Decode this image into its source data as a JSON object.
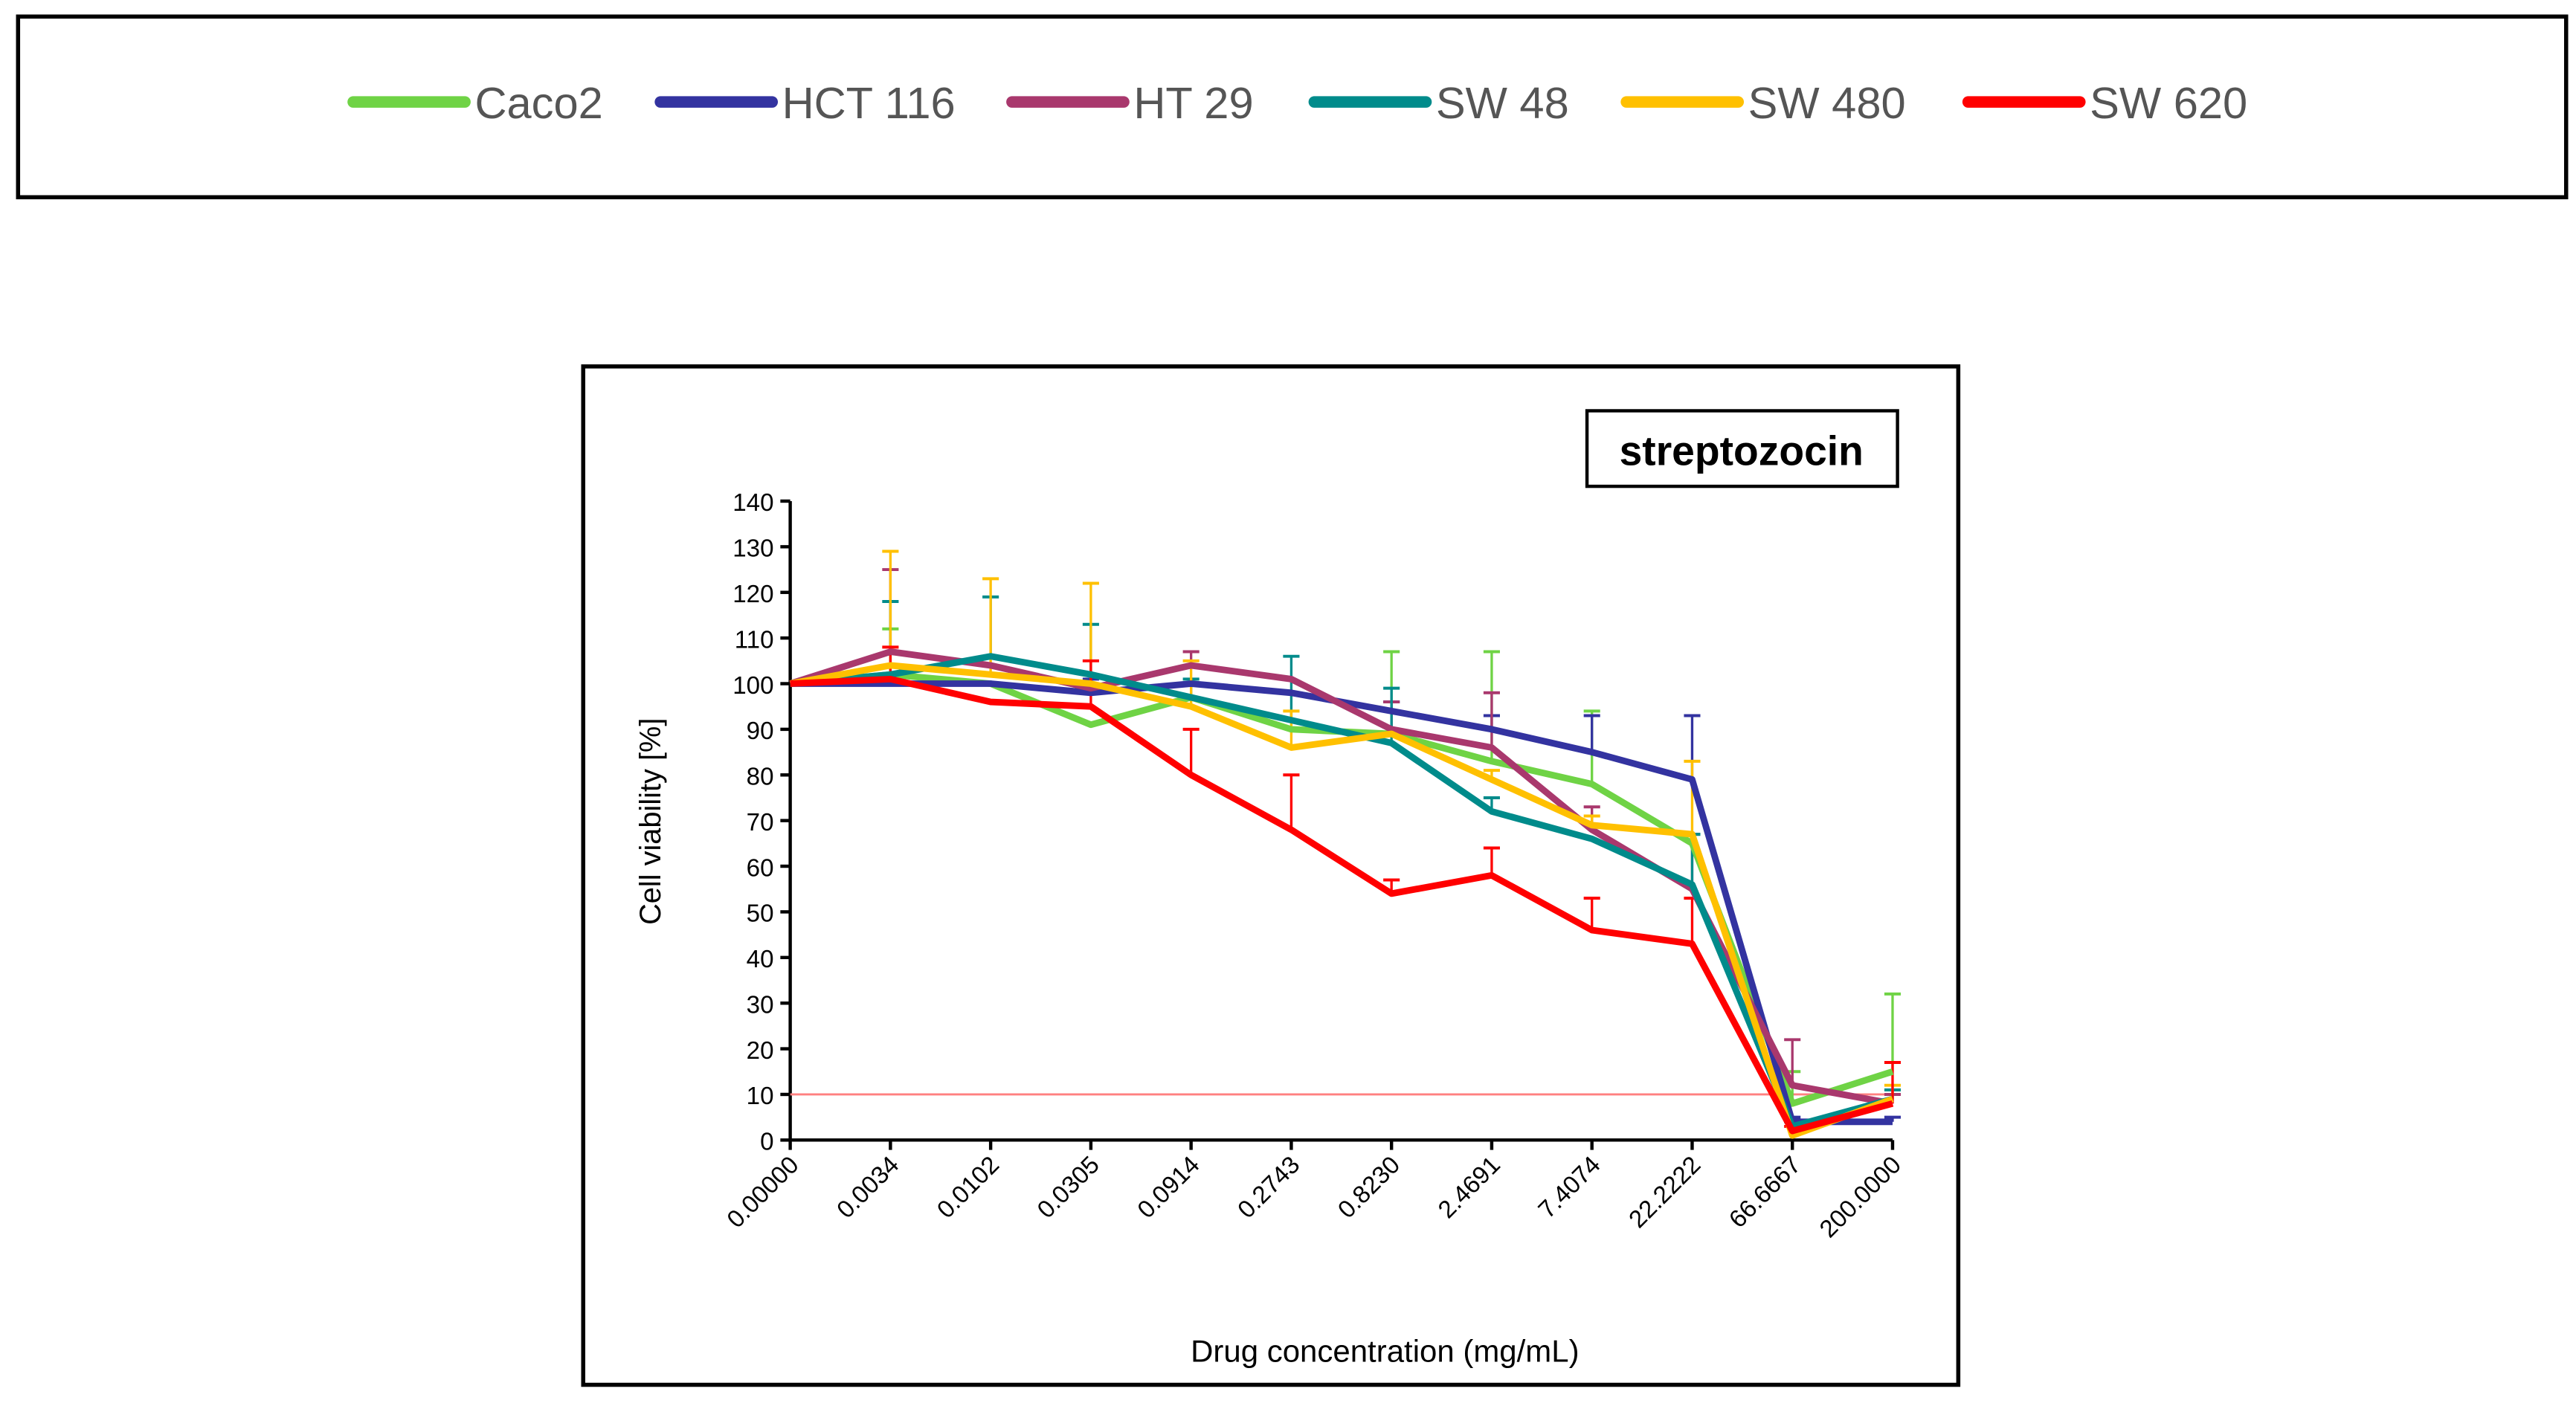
{
  "chart_data": {
    "type": "line",
    "title": "streptozocin",
    "xlabel": "Drug concentration (mg/mL)",
    "ylabel": "Cell viability [%]",
    "ylim": [
      0,
      140
    ],
    "yticks": [
      "0",
      "10",
      "20",
      "30",
      "40",
      "50",
      "60",
      "70",
      "80",
      "90",
      "100",
      "110",
      "120",
      "130",
      "140"
    ],
    "categories": [
      "0.00000",
      "0.0034",
      "0.0102",
      "0.0305",
      "0.0914",
      "0.2743",
      "0.8230",
      "2.4691",
      "7.4074",
      "22.2222",
      "66.6667",
      "200.0000"
    ],
    "reference_line": 10,
    "legend_position": "top",
    "series": [
      {
        "name": "Caco2",
        "color": "#6fd345",
        "values": [
          100,
          102,
          100,
          91,
          97,
          90,
          89,
          83,
          78,
          65,
          8,
          15
        ],
        "error": [
          0,
          10,
          0,
          0,
          0,
          0,
          18,
          24,
          16,
          2,
          7,
          17
        ]
      },
      {
        "name": "HCT 116",
        "color": "#3333a0",
        "values": [
          100,
          100,
          100,
          98,
          100,
          98,
          94,
          90,
          85,
          79,
          4,
          4
        ],
        "error": [
          0,
          0,
          0,
          3,
          0,
          0,
          2,
          3,
          8,
          14,
          1,
          1
        ]
      },
      {
        "name": "HT 29",
        "color": "#a9386d",
        "values": [
          100,
          107,
          104,
          99,
          104,
          101,
          90,
          86,
          68,
          55,
          12,
          8
        ],
        "error": [
          0,
          18,
          0,
          0,
          3,
          0,
          6,
          12,
          5,
          12,
          10,
          2
        ]
      },
      {
        "name": "SW 48",
        "color": "#008b8b",
        "values": [
          100,
          102,
          106,
          102,
          97,
          92,
          87,
          72,
          66,
          56,
          3,
          9
        ],
        "error": [
          0,
          16,
          13,
          11,
          4,
          14,
          12,
          3,
          0,
          11,
          1,
          2
        ]
      },
      {
        "name": "SW 480",
        "color": "#ffc000",
        "values": [
          100,
          104,
          102,
          100,
          95,
          86,
          89,
          79,
          69,
          67,
          1,
          9
        ],
        "error": [
          0,
          25,
          21,
          22,
          10,
          8,
          0,
          2,
          2,
          16,
          0,
          3
        ]
      },
      {
        "name": "SW 620",
        "color": "#ff0000",
        "values": [
          100,
          101,
          96,
          95,
          80,
          68,
          54,
          58,
          46,
          43,
          2,
          8
        ],
        "error": [
          0,
          7,
          0,
          10,
          10,
          12,
          3,
          6,
          7,
          10,
          1,
          9
        ]
      }
    ]
  }
}
